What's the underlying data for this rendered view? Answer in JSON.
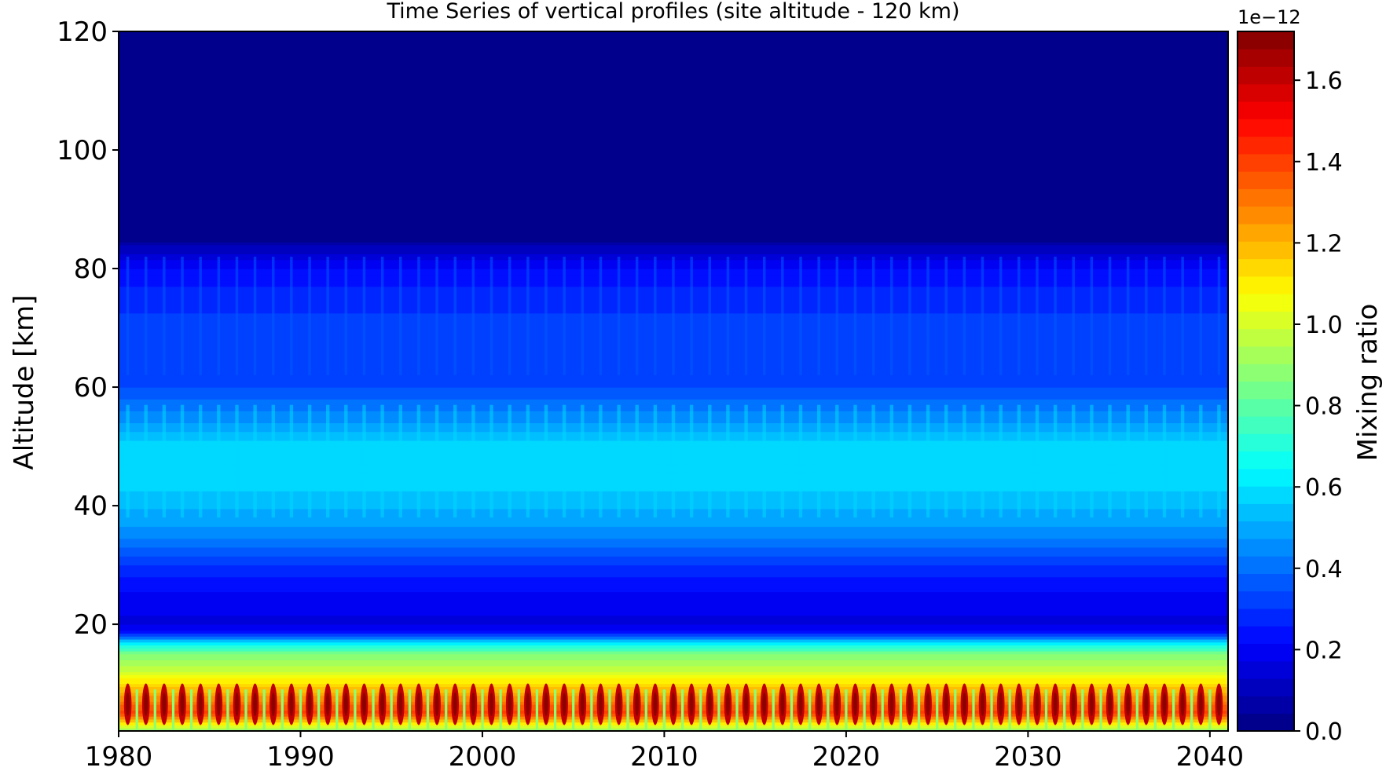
{
  "chart_data": {
    "type": "heatmap",
    "title": "Time Series of vertical profiles (site altitude - 120 km)",
    "xlabel": "",
    "ylabel": "Altitude [km]",
    "xlim": [
      1980,
      2041
    ],
    "ylim": [
      2,
      120
    ],
    "x_ticks": [
      1980,
      1990,
      2000,
      2010,
      2020,
      2030,
      2040
    ],
    "y_ticks": [
      20,
      40,
      60,
      80,
      100,
      120
    ],
    "colorbar": {
      "label": "Mixing ratio",
      "offset_text": "1e−12",
      "range": [
        0.0,
        1.72
      ],
      "ticks": [
        "0.0",
        "0.2",
        "0.4",
        "0.6",
        "0.8",
        "1.0",
        "1.2",
        "1.4",
        "1.6"
      ],
      "tick_values": [
        0.0,
        0.2,
        0.4,
        0.6,
        0.8,
        1.0,
        1.2,
        1.4,
        1.6
      ],
      "colormap": "jet",
      "levels": 40
    },
    "profile": {
      "altitude_km": [
        2,
        5,
        8,
        12,
        15,
        17,
        18.5,
        20,
        25,
        30,
        35,
        40,
        45,
        50,
        55,
        60,
        65,
        70,
        75,
        80,
        82,
        84,
        85,
        120
      ],
      "mixing_ratio_e12": [
        0.9,
        1.4,
        1.25,
        1.0,
        0.85,
        0.6,
        0.25,
        0.16,
        0.2,
        0.3,
        0.45,
        0.52,
        0.6,
        0.58,
        0.45,
        0.34,
        0.33,
        0.32,
        0.28,
        0.22,
        0.15,
        0.08,
        0.0,
        0.0
      ]
    },
    "grid": false,
    "legend": "none"
  }
}
